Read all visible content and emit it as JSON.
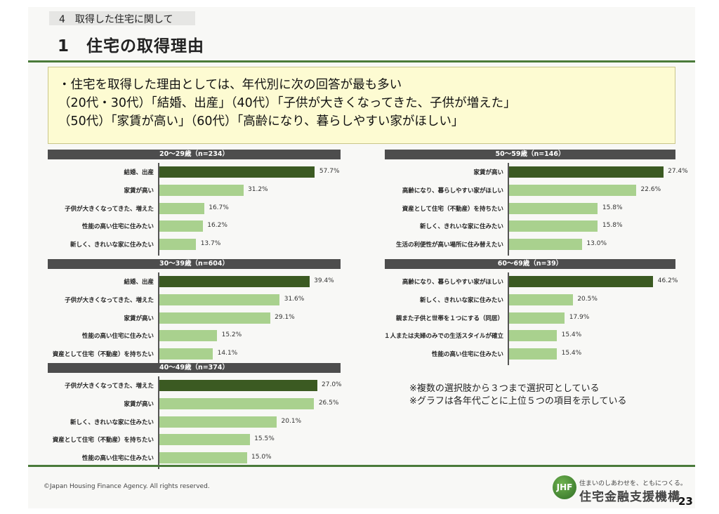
{
  "header": {
    "section": "4　取得した住宅に関して",
    "title": "1　住宅の取得理由"
  },
  "summary": [
    "・住宅を取得した理由としては、年代別に次の回答が最も多い",
    "（20代・30代）「結婚、出産」（40代）「子供が大きくなってきた、子供が増えた」",
    "（50代）「家賃が高い」（60代）「高齢になり、暮らしやすい家がほしい」"
  ],
  "colors": {
    "top": "#3b5a22",
    "other": "#a9d18e",
    "header": "#4d4d4d"
  },
  "chart_data": [
    {
      "type": "bar",
      "title": "20～29歳（n=234）",
      "categories": [
        "結婚、出産",
        "家賃が高い",
        "子供が大きくなってきた、増えた",
        "性能の高い住宅に住みたい",
        "新しく、きれいな家に住みたい"
      ],
      "values": [
        57.7,
        31.2,
        16.7,
        16.2,
        13.7
      ],
      "labels": [
        "57.7%",
        "31.2%",
        "16.7%",
        "16.2%",
        "13.7%"
      ],
      "xlim": [
        0,
        65
      ]
    },
    {
      "type": "bar",
      "title": "30～39歳（n=604）",
      "categories": [
        "結婚、出産",
        "子供が大きくなってきた、増えた",
        "家賃が高い",
        "性能の高い住宅に住みたい",
        "資産として住宅（不動産）を持ちたい"
      ],
      "values": [
        39.4,
        31.6,
        29.1,
        15.2,
        14.1
      ],
      "labels": [
        "39.4%",
        "31.6%",
        "29.1%",
        "15.2%",
        "14.1%"
      ],
      "xlim": [
        0,
        46
      ]
    },
    {
      "type": "bar",
      "title": "40～49歳（n=374）",
      "categories": [
        "子供が大きくなってきた、増えた",
        "家賃が高い",
        "新しく、きれいな家に住みたい",
        "資産として住宅（不動産）を持ちたい",
        "性能の高い住宅に住みたい"
      ],
      "values": [
        27.0,
        26.5,
        20.1,
        15.5,
        15.0
      ],
      "labels": [
        "27.0%",
        "26.5%",
        "20.1%",
        "15.5%",
        "15.0%"
      ],
      "xlim": [
        0,
        30
      ]
    },
    {
      "type": "bar",
      "title": "50～59歳（n=146）",
      "categories": [
        "家賃が高い",
        "高齢になり、暮らしやすい家がほしい",
        "資産として住宅（不動産）を持ちたい",
        "新しく、きれいな家に住みたい",
        "生活の利便性が高い場所に住み替えたい"
      ],
      "values": [
        27.4,
        22.6,
        15.8,
        15.8,
        13.0
      ],
      "labels": [
        "27.4%",
        "22.6%",
        "15.8%",
        "15.8%",
        "13.0%"
      ],
      "xlim": [
        0,
        30.5
      ]
    },
    {
      "type": "bar",
      "title": "60～69歳（n=39）",
      "categories": [
        "高齢になり、暮らしやすい家がほしい",
        "新しく、きれいな家に住みたい",
        "親また子供と世帯を１つにする（同居）",
        "１人または夫婦のみでの生活スタイルが確立",
        "性能の高い住宅に住みたい"
      ],
      "values": [
        46.2,
        20.5,
        17.9,
        15.4,
        15.4
      ],
      "labels": [
        "46.2%",
        "20.5%",
        "17.9%",
        "15.4%",
        "15.4%"
      ],
      "xlim": [
        0,
        55
      ]
    }
  ],
  "notes": [
    "※複数の選択肢から３つまで選択可としている",
    "※グラフは各年代ごとに上位５つの項目を示している"
  ],
  "footer": {
    "copyright": "©Japan Housing Finance Agency. All rights reserved.",
    "logo": "JHF",
    "tagline": "住まいのしあわせを、ともにつくる。",
    "org": "住宅金融支援機構",
    "page": "23"
  }
}
